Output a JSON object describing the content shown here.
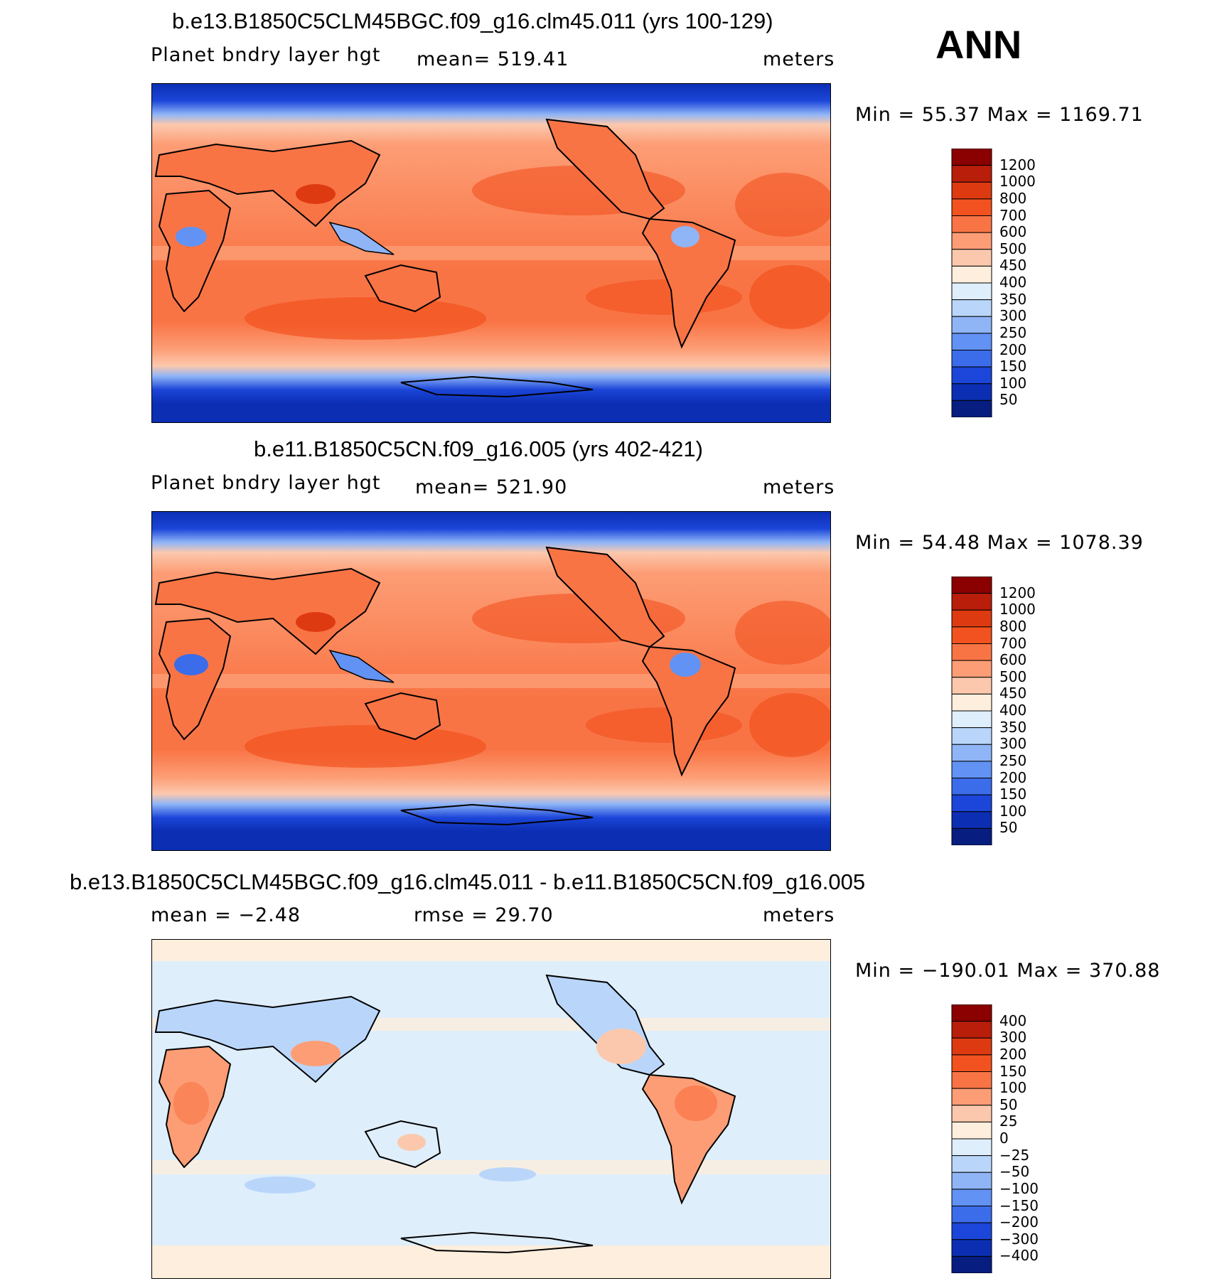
{
  "season": "ANN",
  "panels": [
    {
      "title": "b.e13.B1850C5CLM45BGC.f09_g16.clm45.011 (yrs 100-129)",
      "left_label": "Planet bndry layer hgt",
      "center_label": "mean= 519.41",
      "right_label": "meters",
      "minmax": "Min =   55.37 Max = 1169.71",
      "colorbar": {
        "levels": [
          "1200",
          "1000",
          "800",
          "700",
          "600",
          "500",
          "450",
          "400",
          "350",
          "300",
          "250",
          "200",
          "150",
          "100",
          "50"
        ],
        "colors": [
          "#8b0000",
          "#b81e0a",
          "#de3a12",
          "#f2521f",
          "#f97445",
          "#fd9d75",
          "#fcc8ad",
          "#fdeedd",
          "#dfeefb",
          "#b9d6fa",
          "#8fb5f7",
          "#6292f3",
          "#3b6cea",
          "#1c46d9",
          "#0b2eb3",
          "#071d80"
        ]
      }
    },
    {
      "title": "b.e11.B1850C5CN.f09_g16.005 (yrs 402-421)",
      "left_label": "Planet bndry layer hgt",
      "center_label": "mean= 521.90",
      "right_label": "meters",
      "minmax": "Min =   54.48 Max = 1078.39",
      "colorbar": {
        "levels": [
          "1200",
          "1000",
          "800",
          "700",
          "600",
          "500",
          "450",
          "400",
          "350",
          "300",
          "250",
          "200",
          "150",
          "100",
          "50"
        ],
        "colors": [
          "#8b0000",
          "#b81e0a",
          "#de3a12",
          "#f2521f",
          "#f97445",
          "#fd9d75",
          "#fcc8ad",
          "#fdeedd",
          "#dfeefb",
          "#b9d6fa",
          "#8fb5f7",
          "#6292f3",
          "#3b6cea",
          "#1c46d9",
          "#0b2eb3",
          "#071d80"
        ]
      }
    },
    {
      "title": "b.e13.B1850C5CLM45BGC.f09_g16.clm45.011 - b.e11.B1850C5CN.f09_g16.005",
      "left_label": "mean =   −2.48",
      "center_label": "rmse =   29.70",
      "right_label": "meters",
      "minmax": "Min = −190.01 Max = 370.88",
      "colorbar": {
        "levels": [
          "400",
          "300",
          "200",
          "150",
          "100",
          "50",
          "25",
          "0",
          "−25",
          "−50",
          "−100",
          "−150",
          "−200",
          "−300",
          "−400"
        ],
        "colors": [
          "#8b0000",
          "#b81e0a",
          "#de3a12",
          "#f2521f",
          "#f97445",
          "#fd9d75",
          "#fcc8ad",
          "#fdeedd",
          "#dfeefb",
          "#b9d6fa",
          "#8fb5f7",
          "#6292f3",
          "#3b6cea",
          "#1c46d9",
          "#0b2eb3",
          "#071d80"
        ]
      }
    }
  ]
}
